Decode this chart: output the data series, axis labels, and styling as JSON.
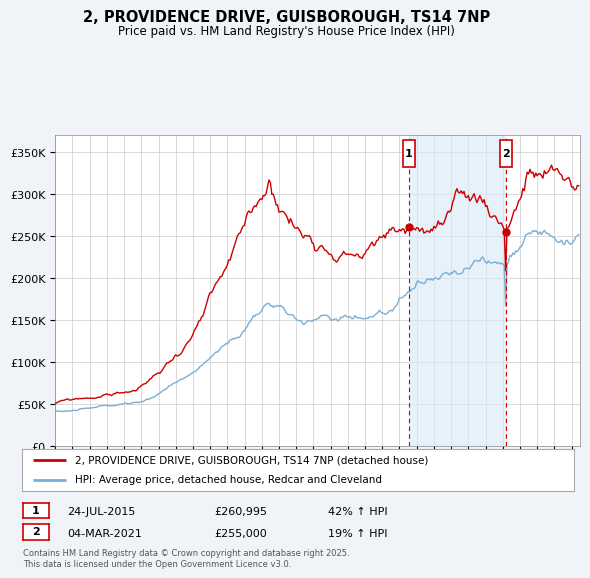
{
  "title": "2, PROVIDENCE DRIVE, GUISBOROUGH, TS14 7NP",
  "subtitle": "Price paid vs. HM Land Registry's House Price Index (HPI)",
  "ylim": [
    0,
    370000
  ],
  "yticks": [
    0,
    50000,
    100000,
    150000,
    200000,
    250000,
    300000,
    350000
  ],
  "ytick_labels": [
    "£0",
    "£50K",
    "£100K",
    "£150K",
    "£200K",
    "£250K",
    "£300K",
    "£350K"
  ],
  "xlim_start": 1995.0,
  "xlim_end": 2025.5,
  "hpi_color": "#7bafd4",
  "hpi_fill_color": "#d6e8f5",
  "price_color": "#cc0000",
  "marker1_date": 2015.55,
  "marker1_price": 260995,
  "marker1_label": "24-JUL-2015",
  "marker1_pct": "42% ↑ HPI",
  "marker2_date": 2021.17,
  "marker2_price": 255000,
  "marker2_label": "04-MAR-2021",
  "marker2_pct": "19% ↑ HPI",
  "legend_line1": "2, PROVIDENCE DRIVE, GUISBOROUGH, TS14 7NP (detached house)",
  "legend_line2": "HPI: Average price, detached house, Redcar and Cleveland",
  "footer": "Contains HM Land Registry data © Crown copyright and database right 2025.\nThis data is licensed under the Open Government Licence v3.0.",
  "background_color": "#f0f4f8",
  "plot_bg_color": "#ffffff"
}
